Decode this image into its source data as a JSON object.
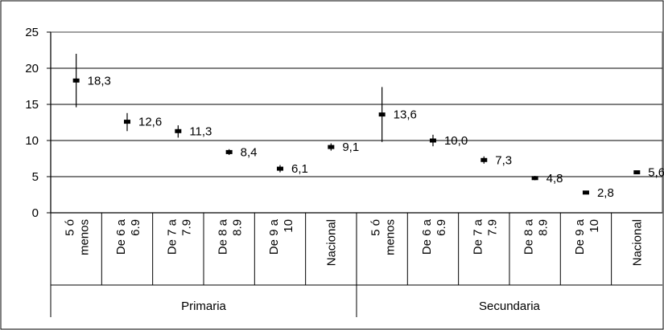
{
  "chart_data": {
    "type": "scatter",
    "title": "",
    "xlabel": "",
    "ylabel": "",
    "ylim": [
      0,
      25
    ],
    "yticks": [
      "0",
      "5",
      "10",
      "15",
      "20",
      "25"
    ],
    "grid": true,
    "error_bars": true,
    "groups": [
      {
        "name": "Primaria",
        "categories": [
          "5 ó menos",
          "De 6 a 6.9",
          "De 7 a 7.9",
          "De 8 a 8.9",
          "De 9 a 10",
          "Nacional"
        ],
        "values": [
          18.3,
          12.6,
          11.3,
          8.4,
          6.1,
          9.1
        ],
        "labels": [
          "18,3",
          "12,6",
          "11,3",
          "8,4",
          "6,1",
          "9,1"
        ],
        "error_low": [
          14.6,
          11.3,
          10.4,
          8.0,
          5.6,
          8.6
        ],
        "error_high": [
          22.0,
          13.8,
          12.1,
          8.8,
          6.6,
          9.6
        ]
      },
      {
        "name": "Secundaria",
        "categories": [
          "5 ó menos",
          "De 6 a 6.9",
          "De 7 a 7.9",
          "De 8 a 8.9",
          "De 9 a 10",
          "Nacional"
        ],
        "values": [
          13.6,
          10.0,
          7.3,
          4.8,
          2.8,
          5.6
        ],
        "labels": [
          "13,6",
          "10,0",
          "7,3",
          "4,8",
          "2,8",
          "5,6"
        ],
        "error_low": [
          9.8,
          9.2,
          6.8,
          4.5,
          2.6,
          5.4
        ],
        "error_high": [
          17.4,
          10.8,
          7.8,
          5.1,
          3.0,
          5.8
        ]
      }
    ]
  }
}
